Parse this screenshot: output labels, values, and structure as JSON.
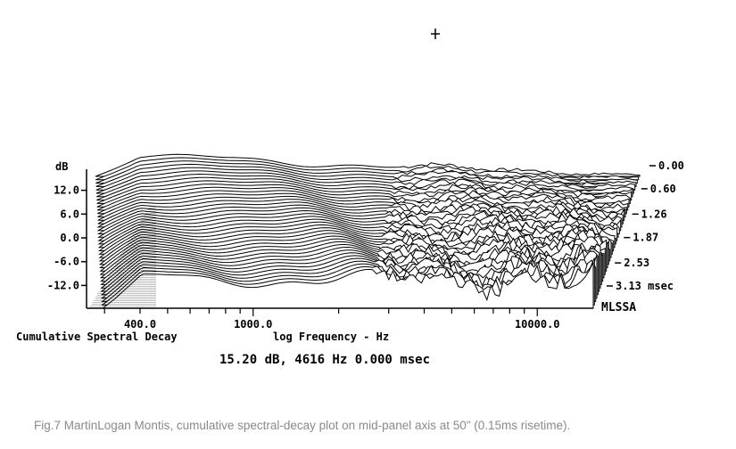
{
  "chart_data": {
    "type": "waterfall",
    "description_none": "",
    "y_unit_label": "dB",
    "y_ticks": [
      "12.0",
      "6.0",
      "0.0",
      "-6.0",
      "-12.0"
    ],
    "y_tick_values": [
      12,
      6,
      0,
      -6,
      -12
    ],
    "x_ticks": [
      "400.0",
      "1000.0",
      "10000.0"
    ],
    "x_tick_values": [
      400,
      1000,
      10000
    ],
    "x_scale": "log",
    "x_label_left": "Cumulative Spectral Decay",
    "x_label_right": "log Frequency - Hz",
    "time_ticks": [
      "0.00",
      "0.60",
      "1.26",
      "1.87",
      "2.53",
      "3.13 msec"
    ],
    "time_tick_values": [
      0.0,
      0.6,
      1.26,
      1.87,
      2.53,
      3.13
    ],
    "brand": "MLSSA",
    "cursor_readout": "15.20 dB, 4616 Hz 0.000 msec",
    "cursor_frequency": 4616,
    "cursor_level_db": 15.2,
    "cursor_time_ms": 0.0,
    "slices": 40
  },
  "caption": "Fig.7 MartinLogan Montis, cumulative spectral-decay plot on mid-panel axis at 50\" (0.15ms risetime)."
}
